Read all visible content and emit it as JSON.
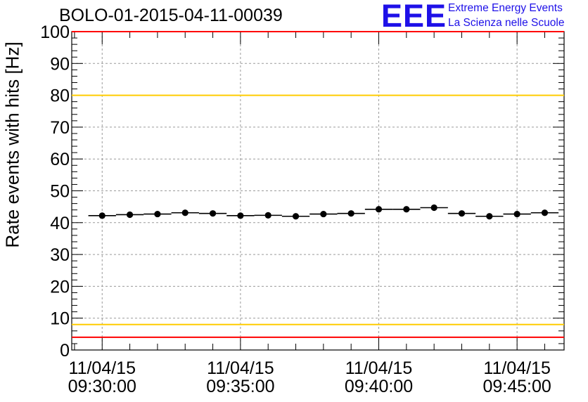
{
  "chart_data": {
    "type": "scatter",
    "title": "BOLO-01-2015-04-11-00039",
    "ylabel": "Rate events with hits [Hz]",
    "xlabel": "",
    "ylim": [
      0,
      100
    ],
    "yticks": [
      0,
      10,
      20,
      30,
      40,
      50,
      60,
      70,
      80,
      90,
      100
    ],
    "xtick_labels": [
      {
        "date": "11/04/15",
        "time": "09:30:00"
      },
      {
        "date": "11/04/15",
        "time": "09:35:00"
      },
      {
        "date": "11/04/15",
        "time": "09:40:00"
      },
      {
        "date": "11/04/15",
        "time": "09:45:00"
      }
    ],
    "x_unit": "minutes after 09:30:00",
    "x": [
      0,
      1,
      2,
      3,
      4,
      5,
      6,
      7,
      8,
      9,
      10,
      11,
      12,
      13,
      14,
      15,
      16
    ],
    "y": [
      42.2,
      42.5,
      42.7,
      43.1,
      42.9,
      42.2,
      42.3,
      42.0,
      42.7,
      42.9,
      44.2,
      44.2,
      44.7,
      42.9,
      42.0,
      42.7,
      43.1
    ],
    "x_error_half_width": 0.5,
    "reference_lines": [
      {
        "y": 100,
        "color": "#ff0000"
      },
      {
        "y": 80,
        "color": "#ffcc00"
      },
      {
        "y": 8,
        "color": "#ffcc00"
      },
      {
        "y": 4,
        "color": "#ff0000"
      }
    ],
    "grid": true
  },
  "logo": {
    "mark": "EEE",
    "line1": "Extreme Energy Events",
    "line2": "La Scienza nelle Scuole",
    "color": "#1e10e8"
  }
}
